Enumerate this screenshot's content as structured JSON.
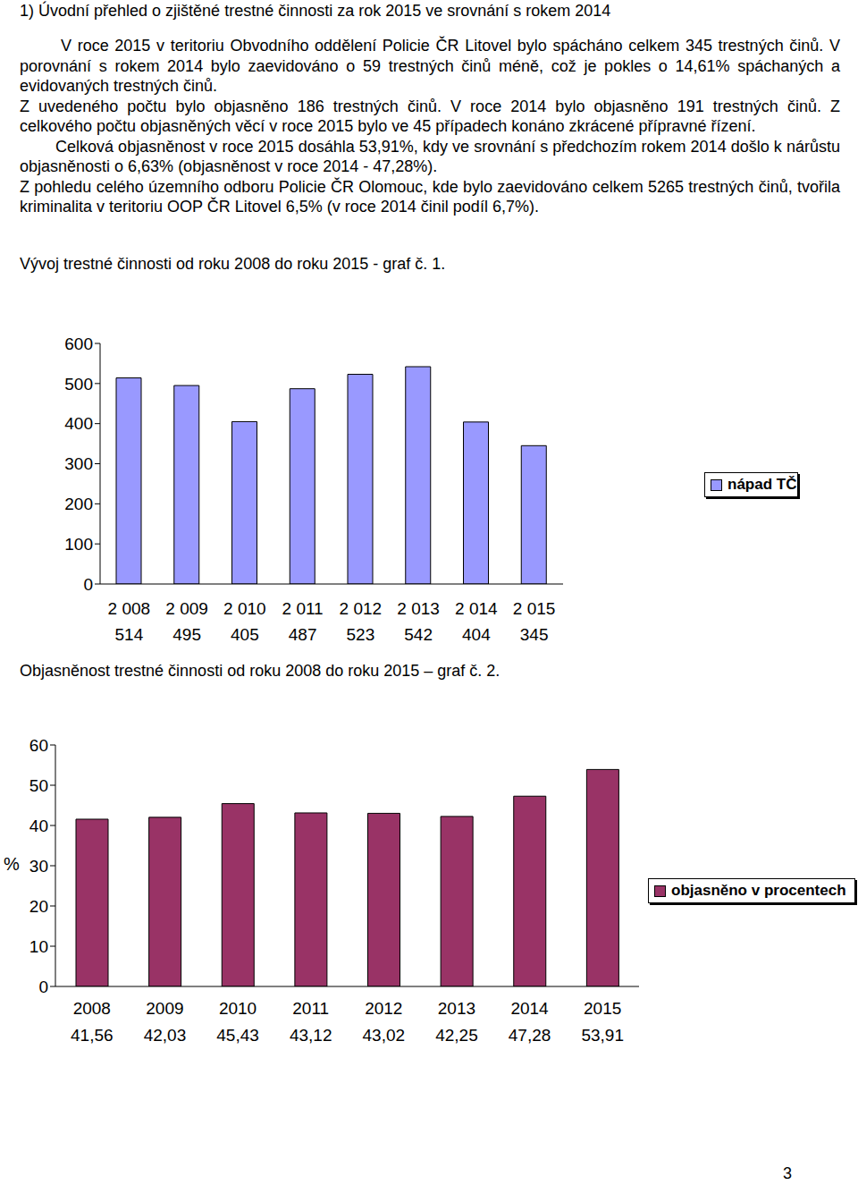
{
  "document": {
    "heading": "1) Úvodní přehled o zjištěné trestné činnosti za rok 2015 ve srovnání s rokem 2014",
    "paragraphs": [
      "V roce 2015 v teritoriu Obvodního oddělení Policie ČR Litovel bylo spácháno celkem 345 trestných činů. V porovnání s rokem 2014 bylo zaevidováno o 59 trestných činů méně, což je pokles o 14,61% spáchaných a evidovaných trestných činů.",
      "Z uvedeného počtu bylo objasněno 186 trestných činů. V roce 2014 bylo objasněno 191 trestných činů. Z celkového počtu objasněných věcí v roce 2015 bylo ve 45 případech konáno zkrácené přípravné řízení.",
      "Celková objasněnost v roce 2015 dosáhla 53,91%, kdy ve srovnání s předchozím rokem 2014 došlo k nárůstu objasněnosti o 6,63% (objasněnost v roce 2014 - 47,28%).",
      "Z pohledu celého územního odboru Policie ČR Olomouc, kde bylo zaevidováno celkem 5265 trestných činů, tvořila kriminalita v teritoriu OOP ČR Litovel 6,5% (v roce 2014 činil podíl 6,7%)."
    ],
    "page_number": "3"
  },
  "chart_data": [
    {
      "type": "bar",
      "title": "Vývoj trestné činnosti od roku 2008 do roku 2015 - graf č. 1.",
      "categories": [
        "2 008",
        "2 009",
        "2 010",
        "2 011",
        "2 012",
        "2 013",
        "2 014",
        "2 015"
      ],
      "series": [
        {
          "name": "nápad TČ",
          "color": "#9999ff",
          "values": [
            514,
            495,
            405,
            487,
            523,
            542,
            404,
            345
          ]
        }
      ],
      "ylim": [
        0,
        600
      ],
      "yticks": [
        0,
        100,
        200,
        300,
        400,
        500,
        600
      ],
      "legend": "right"
    },
    {
      "type": "bar",
      "title": "Objasněnost trestné činnosti od roku 2008 do roku 2015 – graf č. 2.",
      "ylabel": "%",
      "categories": [
        "2008",
        "2009",
        "2010",
        "2011",
        "2012",
        "2013",
        "2014",
        "2015"
      ],
      "series": [
        {
          "name": "objasněno v procentech",
          "color": "#993366",
          "values": [
            41.56,
            42.03,
            45.43,
            43.12,
            43.02,
            42.25,
            47.28,
            53.91
          ],
          "value_labels": [
            "41,56",
            "42,03",
            "45,43",
            "43,12",
            "43,02",
            "42,25",
            "47,28",
            "53,91"
          ]
        }
      ],
      "ylim": [
        0,
        60
      ],
      "yticks": [
        0,
        10,
        20,
        30,
        40,
        50,
        60
      ],
      "legend": "right"
    }
  ]
}
